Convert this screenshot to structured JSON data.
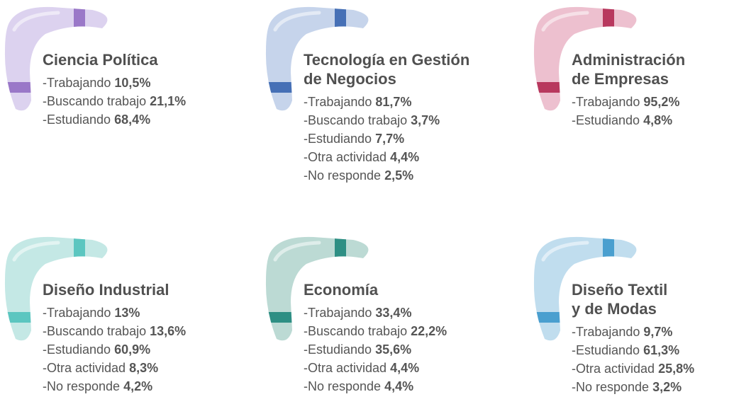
{
  "cards": [
    {
      "title": [
        "Ciencia Política"
      ],
      "items": [
        {
          "label": "-Trabajando",
          "value": "10,5%"
        },
        {
          "label": "-Buscando trabajo",
          "value": "21,1%"
        },
        {
          "label": "-Estudiando",
          "value": "68,4%"
        }
      ]
    },
    {
      "title": [
        "Tecnología en Gestión",
        "de Negocios"
      ],
      "items": [
        {
          "label": "-Trabajando",
          "value": "81,7%"
        },
        {
          "label": "-Buscando trabajo",
          "value": "3,7%"
        },
        {
          "label": "-Estudiando",
          "value": "7,7%"
        },
        {
          "label": "-Otra actividad",
          "value": "4,4%"
        },
        {
          "label": "-No responde",
          "value": "2,5%"
        }
      ]
    },
    {
      "title": [
        "Administración",
        "de Empresas"
      ],
      "items": [
        {
          "label": "-Trabajando",
          "value": "95,2%"
        },
        {
          "label": "-Estudiando",
          "value": "4,8%"
        }
      ]
    },
    {
      "title": [
        "Diseño Industrial"
      ],
      "items": [
        {
          "label": "-Trabajando",
          "value": "13%"
        },
        {
          "label": "-Buscando trabajo",
          "value": "13,6%"
        },
        {
          "label": "-Estudiando",
          "value": "60,9%"
        },
        {
          "label": "-Otra actividad",
          "value": "8,3%"
        },
        {
          "label": "-No responde",
          "value": "4,2%"
        }
      ]
    },
    {
      "title": [
        "Economía"
      ],
      "items": [
        {
          "label": "-Trabajando",
          "value": "33,4%"
        },
        {
          "label": "-Buscando trabajo",
          "value": "22,2%"
        },
        {
          "label": "-Estudiando",
          "value": "35,6%"
        },
        {
          "label": "-Otra actividad",
          "value": "4,4%"
        },
        {
          "label": "-No responde",
          "value": "4,4%"
        }
      ]
    },
    {
      "title": [
        "Diseño Textil",
        "y de Modas"
      ],
      "items": [
        {
          "label": "-Trabajando",
          "value": "9,7%"
        },
        {
          "label": "-Estudiando",
          "value": "61,3%"
        },
        {
          "label": "-Otra actividad",
          "value": "25,8%"
        },
        {
          "label": "-No responde",
          "value": "3,2%"
        }
      ]
    }
  ]
}
